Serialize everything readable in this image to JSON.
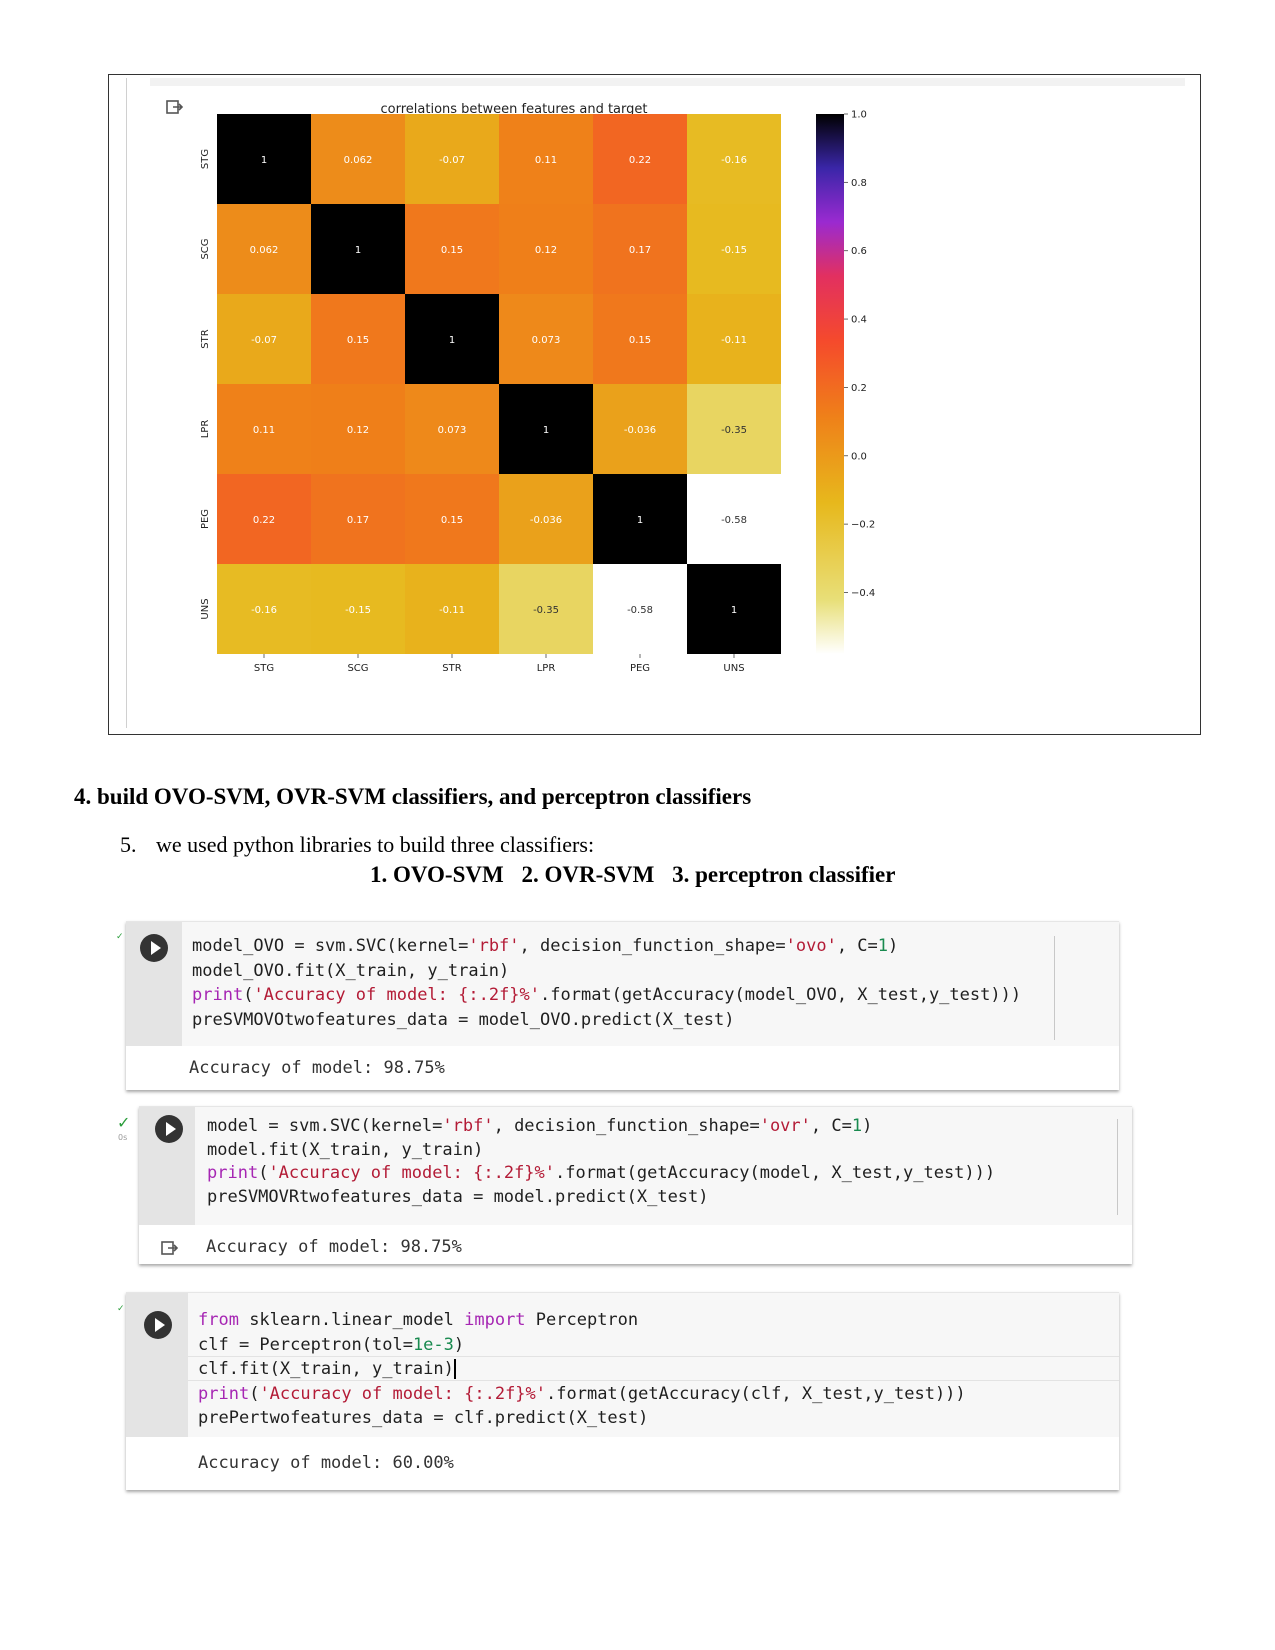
{
  "heatmap": {
    "title": "correlations between features and target",
    "labels": [
      "STG",
      "SCG",
      "STR",
      "LPR",
      "PEG",
      "UNS"
    ],
    "matrix": [
      [
        1,
        0.062,
        -0.07,
        0.11,
        0.22,
        -0.16
      ],
      [
        0.062,
        1,
        0.15,
        0.12,
        0.17,
        -0.15
      ],
      [
        -0.07,
        0.15,
        1,
        0.073,
        0.15,
        -0.11
      ],
      [
        0.11,
        0.12,
        0.073,
        1,
        -0.036,
        -0.35
      ],
      [
        0.22,
        0.17,
        0.15,
        -0.036,
        1,
        -0.58
      ],
      [
        -0.16,
        -0.15,
        -0.11,
        -0.35,
        -0.58,
        1
      ]
    ],
    "cell_labels": [
      [
        "1",
        "0.062",
        "-0.07",
        "0.11",
        "0.22",
        "-0.16"
      ],
      [
        "0.062",
        "1",
        "0.15",
        "0.12",
        "0.17",
        "-0.15"
      ],
      [
        "-0.07",
        "0.15",
        "1",
        "0.073",
        "0.15",
        "-0.11"
      ],
      [
        "0.11",
        "0.12",
        "0.073",
        "1",
        "-0.036",
        "-0.35"
      ],
      [
        "0.22",
        "0.17",
        "0.15",
        "-0.036",
        "1",
        "-0.58"
      ],
      [
        "-0.16",
        "-0.15",
        "-0.11",
        "-0.35",
        "-0.58",
        "1"
      ]
    ],
    "colorbar": {
      "min": -0.58,
      "max": 1.0,
      "ticks": [
        1.0,
        0.8,
        0.6,
        0.4,
        0.2,
        0.0,
        -0.2,
        -0.4
      ],
      "tick_labels": [
        "1.0",
        "0.8",
        "0.6",
        "0.4",
        "0.2",
        "0.0",
        "−0.2",
        "−0.4"
      ],
      "colormap": "CMRmap_r"
    }
  },
  "document": {
    "section_heading": "4. build OVO-SVM, OVR-SVM classifiers, and perceptron classifiers",
    "intro_number": "5.",
    "intro_text": "we used python libraries to build three classifiers:",
    "classifiers": [
      "1.   OVO-SVM",
      "2. OVR-SVM",
      "3. perceptron classifier"
    ]
  },
  "cells": [
    {
      "code": [
        "model_OVO = svm.SVC(kernel='rbf', decision_function_shape='ovo', C=1)",
        "model_OVO.fit(X_train, y_train)",
        "print('Accuracy of model: {:.2f}%'.format(getAccuracy(model_OVO, X_test,y_test)))",
        "preSVMOVOtwofeatures_data = model_OVO.predict(X_test)"
      ],
      "output": "Accuracy of model: 98.75%"
    },
    {
      "code": [
        "model = svm.SVC(kernel='rbf', decision_function_shape='ovr', C=1)",
        "model.fit(X_train, y_train)",
        "print('Accuracy of model: {:.2f}%'.format(getAccuracy(model, X_test,y_test)))",
        "preSVMOVRtwofeatures_data = model.predict(X_test)"
      ],
      "output": "Accuracy of model: 98.75%",
      "status": "✓",
      "exec_time": "0s"
    },
    {
      "code": [
        "from sklearn.linear_model import Perceptron",
        "clf = Perceptron(tol=1e-3)",
        "clf.fit(X_train, y_train)",
        "print('Accuracy of model: {:.2f}%'.format(getAccuracy(clf, X_test,y_test)))",
        "prePertwofeatures_data = clf.predict(X_test)"
      ],
      "output": "Accuracy of model: 60.00%"
    }
  ]
}
